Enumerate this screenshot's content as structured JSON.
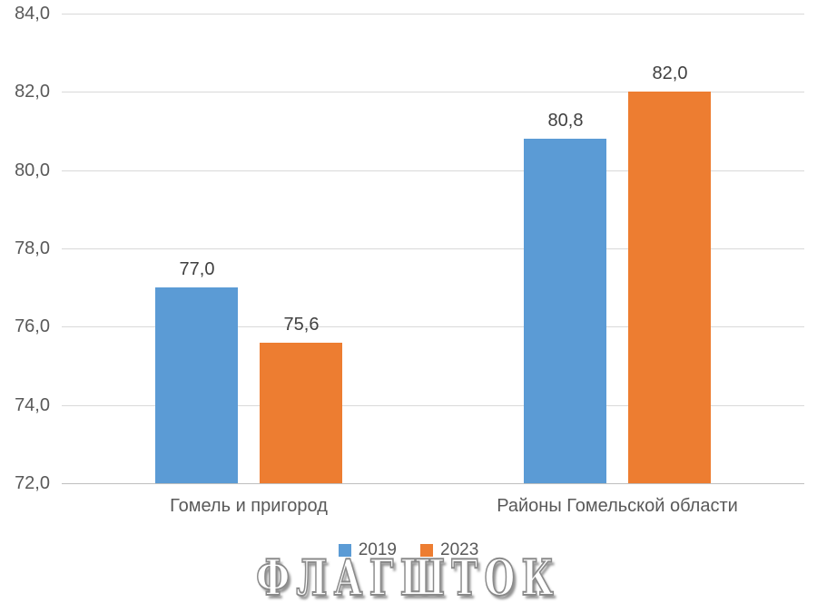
{
  "chart_data": {
    "type": "bar",
    "categories": [
      "Гомель и пригород",
      "Районы Гомельской области"
    ],
    "series": [
      {
        "name": "2019",
        "color": "#5b9bd5",
        "values": [
          77.0,
          80.8
        ]
      },
      {
        "name": "2023",
        "color": "#ed7d31",
        "values": [
          75.6,
          82.0
        ]
      }
    ],
    "data_labels": [
      [
        "77,0",
        "80,8"
      ],
      [
        "75,6",
        "82,0"
      ]
    ],
    "y_ticks": [
      "84,0",
      "82,0",
      "80,0",
      "78,0",
      "76,0",
      "74,0",
      "72,0"
    ],
    "ylim": [
      72,
      84
    ],
    "title": "",
    "xlabel": "",
    "ylabel": "",
    "grid": true,
    "legend_position": "bottom",
    "decimal_separator": ","
  },
  "legend": {
    "items": [
      {
        "label": "2019",
        "color": "#5b9bd5"
      },
      {
        "label": "2023",
        "color": "#ed7d31"
      }
    ]
  },
  "watermark": {
    "text": "ФЛАГШТОК"
  },
  "colors": {
    "series_2019": "#5b9bd5",
    "series_2023": "#ed7d31",
    "gridline": "#d9d9d9",
    "axis_line": "#bfbfbf",
    "tick_text": "#595959",
    "data_label_text": "#404040",
    "background": "#ffffff"
  }
}
